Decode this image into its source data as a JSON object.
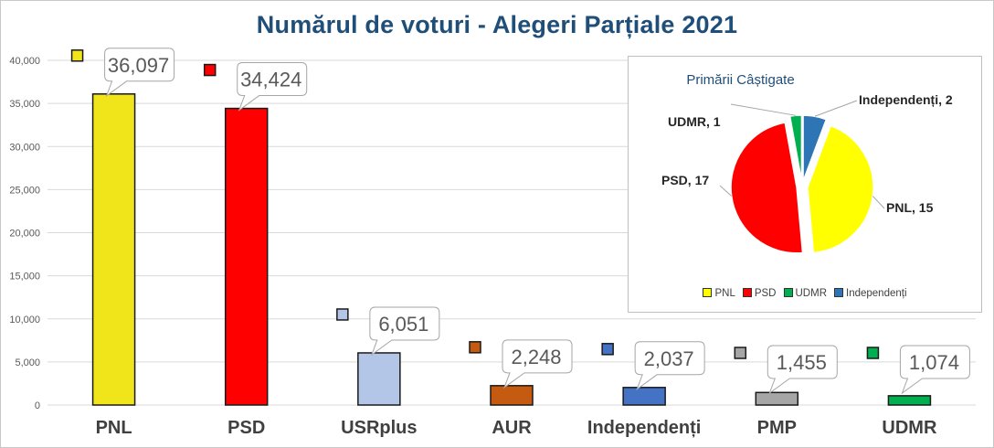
{
  "title": "Numărul de voturi - Alegeri Parțiale 2021",
  "chart_data": [
    {
      "type": "bar",
      "title": "Numărul de voturi - Alegeri Parțiale 2021",
      "categories": [
        "PNL",
        "PSD",
        "USRplus",
        "AUR",
        "Independenți",
        "PMP",
        "UDMR"
      ],
      "values": [
        36097,
        34424,
        6051,
        2248,
        2037,
        1455,
        1074
      ],
      "data_labels": [
        "36,097",
        "34,424",
        "6,051",
        "2,248",
        "2,037",
        "1,455",
        "1,074"
      ],
      "colors": [
        "#f0e41a",
        "#ff0000",
        "#b4c6e7",
        "#c55a11",
        "#4472c4",
        "#a6a6a6",
        "#00b050"
      ],
      "ylim": [
        0,
        40000
      ],
      "yticks": [
        0,
        5000,
        10000,
        15000,
        20000,
        25000,
        30000,
        35000,
        40000
      ],
      "ytick_labels": [
        "0",
        "5,000",
        "10,000",
        "15,000",
        "20,000",
        "25,000",
        "30,000",
        "35,000",
        "40,000"
      ],
      "xlabel": "",
      "ylabel": "",
      "grid": true
    },
    {
      "type": "pie",
      "title": "Primării Câștigate",
      "categories": [
        "PNL",
        "PSD",
        "UDMR",
        "Independenți"
      ],
      "values": [
        15,
        17,
        1,
        2
      ],
      "slice_labels": [
        "PNL, 15",
        "PSD, 17",
        "UDMR, 1",
        "Independenți, 2"
      ],
      "colors": [
        "#ffff00",
        "#ff0000",
        "#00b050",
        "#2e75b6"
      ],
      "legend_position": "bottom"
    }
  ]
}
